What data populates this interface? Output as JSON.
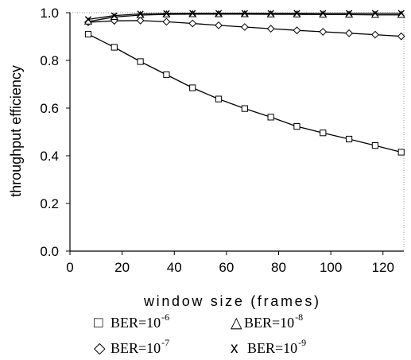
{
  "chart_data": {
    "type": "line",
    "xlabel": "window size (frames)",
    "ylabel": "throughput efficiency",
    "xlim": [
      0,
      128
    ],
    "ylim": [
      0.0,
      1.0
    ],
    "xticks": [
      0,
      20,
      40,
      60,
      80,
      100,
      120
    ],
    "yticks": [
      0.0,
      0.2,
      0.4,
      0.6,
      0.8,
      1.0
    ],
    "x_tick_labels": [
      "0",
      "20",
      "40",
      "60",
      "80",
      "100",
      "120"
    ],
    "y_tick_labels": [
      "0.0",
      "0.2",
      "0.4",
      "0.6",
      "0.8",
      "1.0"
    ],
    "grid": "none",
    "legend_position": "below",
    "x": [
      7,
      17,
      27,
      37,
      47,
      57,
      67,
      77,
      87,
      97,
      107,
      117,
      127
    ],
    "series": [
      {
        "name": "BER=10",
        "exponent": "-6",
        "marker": "square",
        "legend_symbol": "□",
        "values": [
          0.91,
          0.855,
          0.795,
          0.74,
          0.685,
          0.638,
          0.598,
          0.562,
          0.523,
          0.496,
          0.47,
          0.443,
          0.415
        ]
      },
      {
        "name": "BER=10",
        "exponent": "-7",
        "marker": "diamond",
        "legend_symbol": "◇",
        "values": [
          0.96,
          0.966,
          0.967,
          0.962,
          0.955,
          0.947,
          0.94,
          0.933,
          0.926,
          0.92,
          0.914,
          0.908,
          0.901
        ]
      },
      {
        "name": "BER=10",
        "exponent": "-8",
        "marker": "triangle",
        "legend_symbol": "△",
        "values": [
          0.963,
          0.982,
          0.99,
          0.993,
          0.994,
          0.994,
          0.994,
          0.993,
          0.993,
          0.992,
          0.992,
          0.991,
          0.991
        ]
      },
      {
        "name": "BER=10",
        "exponent": "-9",
        "marker": "x",
        "legend_symbol": "x",
        "values": [
          0.972,
          0.988,
          0.995,
          0.997,
          0.998,
          0.998,
          0.998,
          0.998,
          0.998,
          0.998,
          0.998,
          0.998,
          0.998
        ]
      }
    ]
  }
}
